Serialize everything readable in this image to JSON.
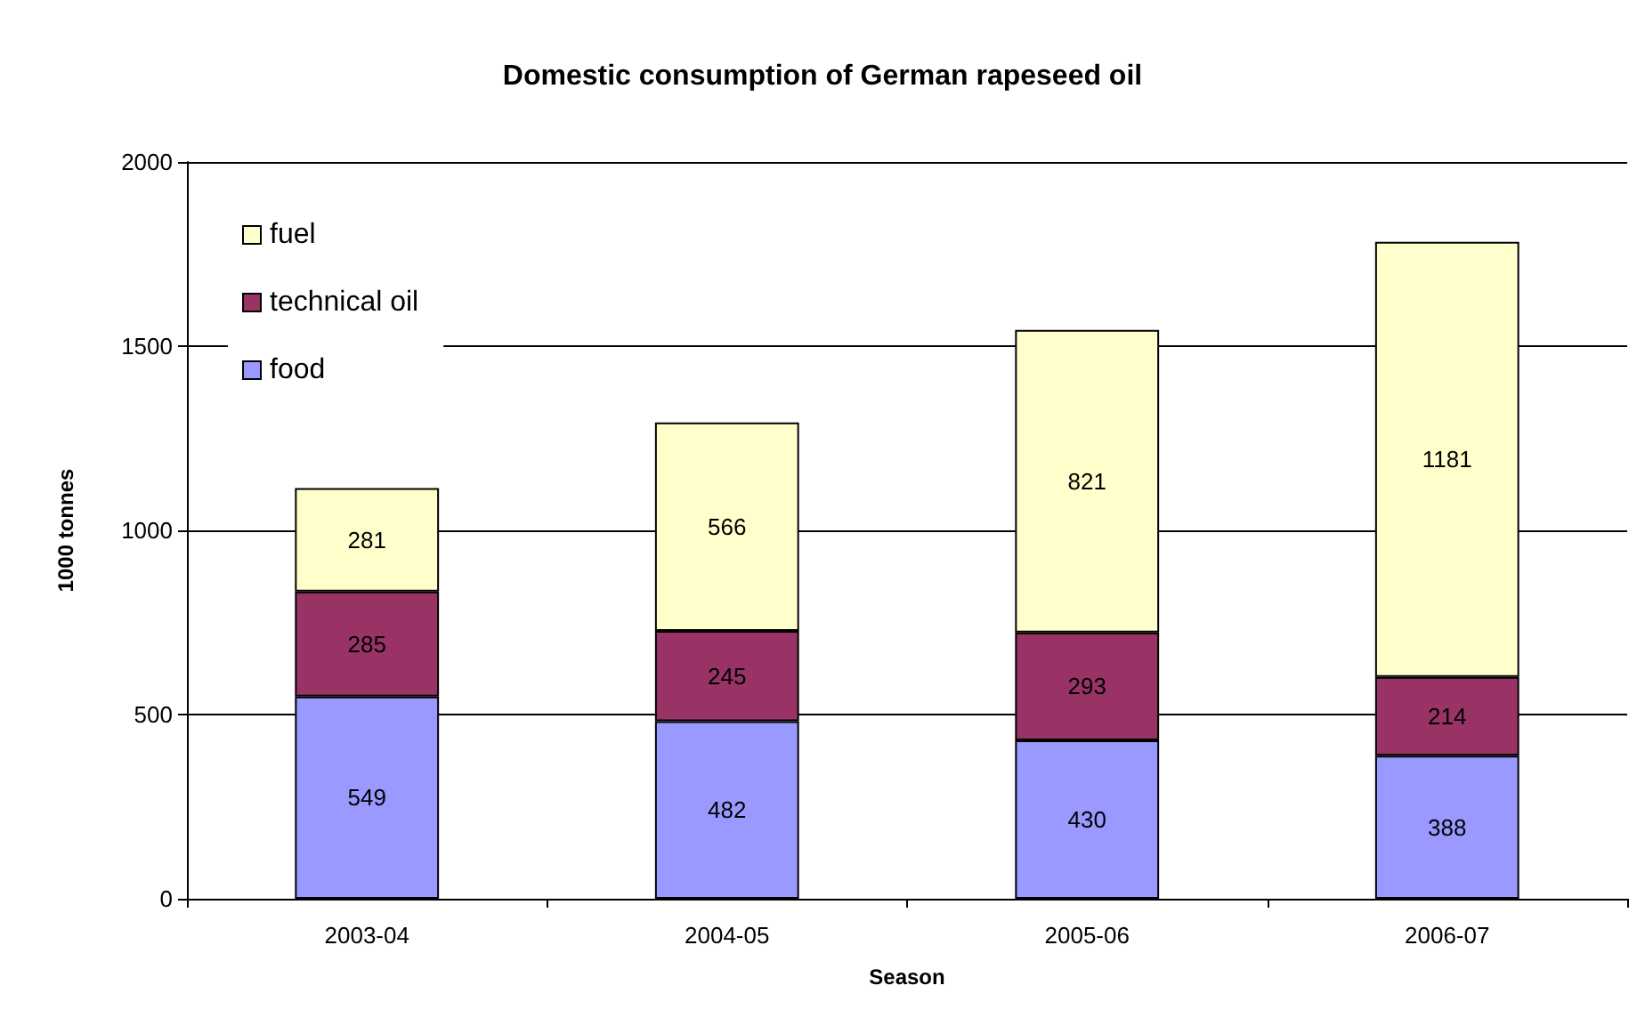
{
  "chart_data": {
    "type": "bar",
    "title": "Domestic consumption of German rapeseed oil",
    "xlabel": "Season",
    "ylabel": "1000 tonnes",
    "categories": [
      "2003-04",
      "2004-05",
      "2005-06",
      "2006-07"
    ],
    "series": [
      {
        "name": "food",
        "color": "#9999ff",
        "values": [
          549,
          482,
          430,
          388
        ]
      },
      {
        "name": "technical oil",
        "color": "#993366",
        "values": [
          285,
          245,
          293,
          214
        ]
      },
      {
        "name": "fuel",
        "color": "#ffffcc",
        "values": [
          281,
          566,
          821,
          1181
        ]
      }
    ],
    "stacked": true,
    "data_labels": true,
    "ylim": [
      0,
      2000
    ],
    "yticks": [
      0,
      500,
      1000,
      1500,
      2000
    ],
    "grid": "y",
    "legend": "top left"
  }
}
